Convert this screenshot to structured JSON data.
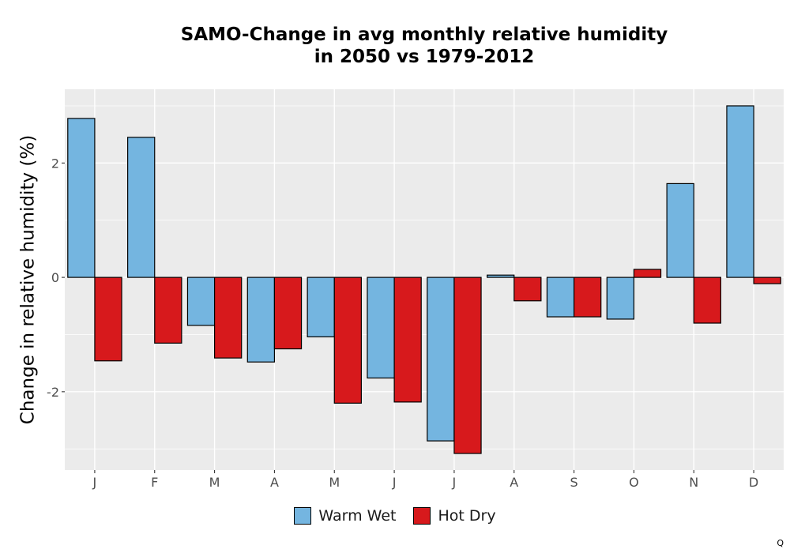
{
  "chart_data": {
    "type": "bar",
    "title_lines": [
      "SAMO-Change in avg monthly relative humidity",
      "in 2050 vs 1979-2012"
    ],
    "xlabel": "",
    "ylabel": "Change in relative humidity (%)",
    "categories": [
      "J",
      "F",
      "M",
      "A",
      "M",
      "J",
      "J",
      "A",
      "S",
      "O",
      "N",
      "D"
    ],
    "series": [
      {
        "name": "Warm Wet",
        "color": "#74b5e0",
        "values": [
          2.78,
          2.45,
          -0.84,
          -1.48,
          -1.04,
          -1.76,
          -2.86,
          0.04,
          -0.69,
          -0.73,
          1.64,
          3.0
        ]
      },
      {
        "name": "Hot Dry",
        "color": "#d7191c",
        "values": [
          -1.46,
          -1.15,
          -1.41,
          -1.25,
          -2.2,
          -2.18,
          -3.08,
          -0.41,
          -0.69,
          0.14,
          -0.8,
          -0.11
        ]
      }
    ],
    "ylim": [
      -3.37,
      3.29
    ],
    "yticks": [
      -2,
      0,
      2
    ],
    "ytick_labels": [
      "-2",
      "0",
      "2"
    ],
    "grid": true,
    "legend_position": "bottom",
    "background_color": "#ebebeb",
    "corner_mark": "Q"
  }
}
